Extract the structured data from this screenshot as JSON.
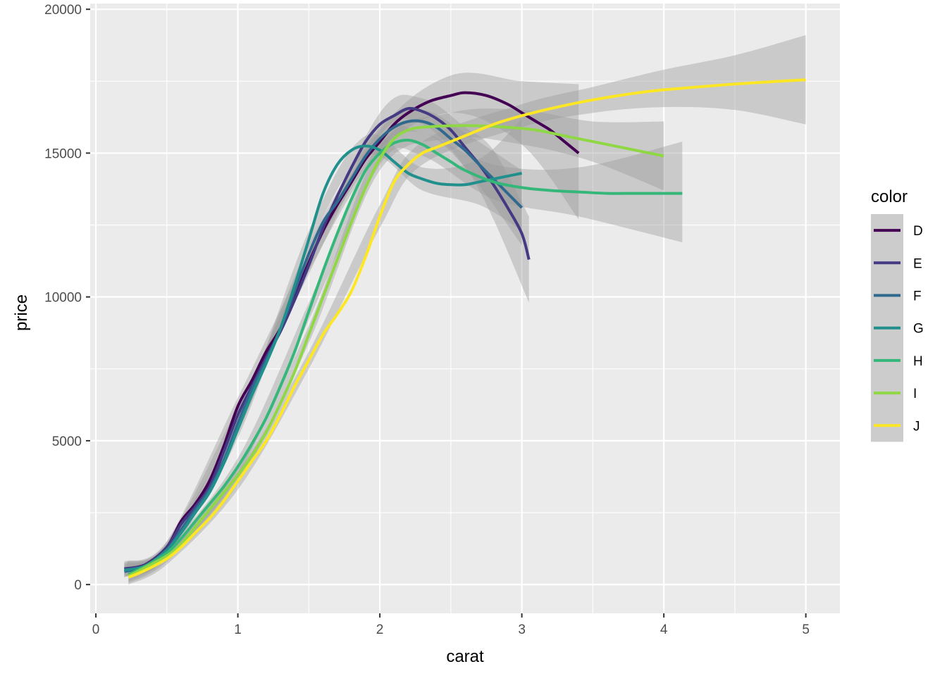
{
  "chart_data": {
    "type": "line",
    "xlabel": "carat",
    "ylabel": "price",
    "xlim": [
      -0.04,
      5.24
    ],
    "ylim": [
      -1000,
      20200
    ],
    "x_ticks": [
      0,
      1,
      2,
      3,
      4,
      5
    ],
    "x_tick_labels": [
      "0",
      "1",
      "2",
      "3",
      "4",
      "5"
    ],
    "y_ticks": [
      0,
      5000,
      10000,
      15000,
      20000
    ],
    "y_tick_labels": [
      "0",
      "5000",
      "10000",
      "15000",
      "20000"
    ],
    "grid": true,
    "legend": {
      "title": "color",
      "position": "right"
    },
    "series": [
      {
        "name": "D",
        "color": "#440154",
        "points": [
          [
            0.22,
            550
          ],
          [
            0.35,
            700
          ],
          [
            0.5,
            1300
          ],
          [
            0.6,
            2200
          ],
          [
            0.7,
            2800
          ],
          [
            0.8,
            3600
          ],
          [
            0.9,
            4800
          ],
          [
            1.0,
            6200
          ],
          [
            1.1,
            7100
          ],
          [
            1.2,
            8100
          ],
          [
            1.3,
            8900
          ],
          [
            1.4,
            10000
          ],
          [
            1.5,
            11200
          ],
          [
            1.6,
            12300
          ],
          [
            1.7,
            13200
          ],
          [
            1.8,
            14000
          ],
          [
            1.9,
            14800
          ],
          [
            2.0,
            15400
          ],
          [
            2.1,
            16000
          ],
          [
            2.2,
            16400
          ],
          [
            2.35,
            16800
          ],
          [
            2.5,
            17000
          ],
          [
            2.6,
            17100
          ],
          [
            2.75,
            17000
          ],
          [
            2.9,
            16700
          ],
          [
            3.0,
            16400
          ],
          [
            3.1,
            16100
          ],
          [
            3.2,
            15800
          ],
          [
            3.3,
            15400
          ],
          [
            3.4,
            15000
          ]
        ],
        "band": [
          [
            0.22,
            300,
            800
          ],
          [
            0.5,
            1100,
            1500
          ],
          [
            1.0,
            5900,
            6500
          ],
          [
            1.5,
            10900,
            11500
          ],
          [
            2.0,
            15000,
            15800
          ],
          [
            2.5,
            16400,
            17700
          ],
          [
            3.0,
            15300,
            17500
          ],
          [
            3.4,
            12700,
            17400
          ]
        ]
      },
      {
        "name": "E",
        "color": "#443a83",
        "points": [
          [
            0.2,
            550
          ],
          [
            0.35,
            700
          ],
          [
            0.5,
            1300
          ],
          [
            0.6,
            2100
          ],
          [
            0.7,
            2700
          ],
          [
            0.8,
            3400
          ],
          [
            0.9,
            4600
          ],
          [
            1.0,
            5900
          ],
          [
            1.1,
            6900
          ],
          [
            1.2,
            7900
          ],
          [
            1.3,
            8800
          ],
          [
            1.4,
            9900
          ],
          [
            1.5,
            11100
          ],
          [
            1.6,
            12400
          ],
          [
            1.7,
            13500
          ],
          [
            1.8,
            14500
          ],
          [
            1.9,
            15400
          ],
          [
            2.0,
            16000
          ],
          [
            2.1,
            16300
          ],
          [
            2.2,
            16550
          ],
          [
            2.3,
            16450
          ],
          [
            2.4,
            16200
          ],
          [
            2.5,
            15800
          ],
          [
            2.6,
            15200
          ],
          [
            2.7,
            14600
          ],
          [
            2.8,
            13900
          ],
          [
            2.9,
            13100
          ],
          [
            3.0,
            12200
          ],
          [
            3.05,
            11300
          ]
        ],
        "band": [
          [
            0.2,
            300,
            800
          ],
          [
            0.5,
            1100,
            1500
          ],
          [
            1.0,
            5600,
            6200
          ],
          [
            1.5,
            10800,
            11400
          ],
          [
            2.0,
            15600,
            16400
          ],
          [
            2.3,
            16000,
            16900
          ],
          [
            2.6,
            14500,
            15900
          ],
          [
            2.8,
            12700,
            15100
          ],
          [
            3.05,
            9800,
            12800
          ]
        ]
      },
      {
        "name": "F",
        "color": "#31688e",
        "points": [
          [
            0.2,
            450
          ],
          [
            0.35,
            650
          ],
          [
            0.5,
            1200
          ],
          [
            0.6,
            1900
          ],
          [
            0.7,
            2600
          ],
          [
            0.8,
            3300
          ],
          [
            0.9,
            4300
          ],
          [
            1.0,
            5600
          ],
          [
            1.1,
            6800
          ],
          [
            1.2,
            7800
          ],
          [
            1.3,
            8900
          ],
          [
            1.4,
            10200
          ],
          [
            1.5,
            11500
          ],
          [
            1.6,
            12600
          ],
          [
            1.7,
            13300
          ],
          [
            1.8,
            14100
          ],
          [
            1.9,
            14900
          ],
          [
            2.0,
            15500
          ],
          [
            2.1,
            15900
          ],
          [
            2.2,
            16100
          ],
          [
            2.3,
            16100
          ],
          [
            2.4,
            15900
          ],
          [
            2.5,
            15500
          ],
          [
            2.6,
            15100
          ],
          [
            2.7,
            14600
          ],
          [
            2.8,
            14100
          ],
          [
            2.9,
            13600
          ],
          [
            3.0,
            13100
          ]
        ],
        "band": [
          [
            0.2,
            250,
            700
          ],
          [
            0.5,
            1000,
            1400
          ],
          [
            1.0,
            5300,
            5900
          ],
          [
            1.5,
            11200,
            11800
          ],
          [
            2.0,
            15100,
            15900
          ],
          [
            2.3,
            15700,
            16500
          ],
          [
            2.6,
            14500,
            15700
          ],
          [
            3.0,
            11800,
            14400
          ]
        ]
      },
      {
        "name": "G",
        "color": "#21908d",
        "points": [
          [
            0.2,
            500
          ],
          [
            0.35,
            650
          ],
          [
            0.5,
            1200
          ],
          [
            0.6,
            1800
          ],
          [
            0.7,
            2500
          ],
          [
            0.8,
            3200
          ],
          [
            0.9,
            4200
          ],
          [
            1.0,
            5400
          ],
          [
            1.1,
            6600
          ],
          [
            1.2,
            7700
          ],
          [
            1.3,
            8900
          ],
          [
            1.4,
            10400
          ],
          [
            1.5,
            12000
          ],
          [
            1.6,
            13600
          ],
          [
            1.7,
            14600
          ],
          [
            1.8,
            15100
          ],
          [
            1.9,
            15250
          ],
          [
            2.0,
            15100
          ],
          [
            2.1,
            14700
          ],
          [
            2.2,
            14300
          ],
          [
            2.3,
            14100
          ],
          [
            2.4,
            13950
          ],
          [
            2.5,
            13900
          ],
          [
            2.6,
            13900
          ],
          [
            2.7,
            14000
          ],
          [
            2.8,
            14100
          ],
          [
            2.9,
            14200
          ],
          [
            3.0,
            14300
          ]
        ],
        "band": [
          [
            0.2,
            250,
            750
          ],
          [
            0.5,
            1000,
            1400
          ],
          [
            1.0,
            5100,
            5700
          ],
          [
            1.5,
            11700,
            12300
          ],
          [
            1.9,
            14900,
            15600
          ],
          [
            2.3,
            13700,
            14500
          ],
          [
            2.7,
            13200,
            14800
          ],
          [
            3.0,
            12300,
            16200
          ]
        ]
      },
      {
        "name": "H",
        "color": "#35b779",
        "points": [
          [
            0.23,
            350
          ],
          [
            0.35,
            650
          ],
          [
            0.5,
            1100
          ],
          [
            0.6,
            1600
          ],
          [
            0.7,
            2200
          ],
          [
            0.8,
            2800
          ],
          [
            0.9,
            3400
          ],
          [
            1.0,
            4100
          ],
          [
            1.1,
            4900
          ],
          [
            1.2,
            5800
          ],
          [
            1.3,
            6900
          ],
          [
            1.4,
            8100
          ],
          [
            1.5,
            9500
          ],
          [
            1.6,
            10900
          ],
          [
            1.7,
            12200
          ],
          [
            1.8,
            13400
          ],
          [
            1.9,
            14400
          ],
          [
            2.0,
            15000
          ],
          [
            2.1,
            15350
          ],
          [
            2.2,
            15450
          ],
          [
            2.3,
            15300
          ],
          [
            2.4,
            15000
          ],
          [
            2.5,
            14700
          ],
          [
            2.6,
            14400
          ],
          [
            2.8,
            14000
          ],
          [
            3.0,
            13800
          ],
          [
            3.2,
            13700
          ],
          [
            3.4,
            13650
          ],
          [
            3.6,
            13600
          ],
          [
            3.8,
            13600
          ],
          [
            4.0,
            13600
          ],
          [
            4.13,
            13600
          ]
        ],
        "band": [
          [
            0.23,
            100,
            600
          ],
          [
            0.5,
            900,
            1300
          ],
          [
            1.0,
            3800,
            4400
          ],
          [
            1.5,
            9200,
            9800
          ],
          [
            2.0,
            14600,
            15400
          ],
          [
            2.3,
            14900,
            15700
          ],
          [
            2.8,
            13400,
            14600
          ],
          [
            3.4,
            12800,
            14500
          ],
          [
            4.13,
            11900,
            15400
          ]
        ]
      },
      {
        "name": "I",
        "color": "#8fd744",
        "points": [
          [
            0.23,
            300
          ],
          [
            0.35,
            600
          ],
          [
            0.5,
            1000
          ],
          [
            0.6,
            1400
          ],
          [
            0.7,
            2000
          ],
          [
            0.8,
            2600
          ],
          [
            0.9,
            3200
          ],
          [
            1.0,
            3800
          ],
          [
            1.1,
            4500
          ],
          [
            1.2,
            5300
          ],
          [
            1.3,
            6300
          ],
          [
            1.4,
            7400
          ],
          [
            1.5,
            8700
          ],
          [
            1.6,
            10000
          ],
          [
            1.7,
            11300
          ],
          [
            1.8,
            12600
          ],
          [
            1.9,
            13800
          ],
          [
            2.0,
            14800
          ],
          [
            2.1,
            15500
          ],
          [
            2.2,
            15800
          ],
          [
            2.3,
            15900
          ],
          [
            2.5,
            15950
          ],
          [
            2.7,
            15950
          ],
          [
            2.9,
            15900
          ],
          [
            3.1,
            15800
          ],
          [
            3.3,
            15600
          ],
          [
            3.5,
            15400
          ],
          [
            3.7,
            15200
          ],
          [
            3.9,
            15000
          ],
          [
            4.0,
            14900
          ]
        ],
        "band": [
          [
            0.23,
            50,
            550
          ],
          [
            0.5,
            800,
            1200
          ],
          [
            1.0,
            3500,
            4100
          ],
          [
            1.5,
            8400,
            9000
          ],
          [
            2.0,
            14400,
            15200
          ],
          [
            2.5,
            15500,
            16400
          ],
          [
            3.0,
            15300,
            16500
          ],
          [
            3.5,
            14700,
            16100
          ],
          [
            4.0,
            13700,
            16100
          ]
        ]
      },
      {
        "name": "J",
        "color": "#fde725",
        "points": [
          [
            0.23,
            250
          ],
          [
            0.35,
            500
          ],
          [
            0.5,
            900
          ],
          [
            0.6,
            1300
          ],
          [
            0.7,
            1800
          ],
          [
            0.8,
            2300
          ],
          [
            0.9,
            2900
          ],
          [
            1.0,
            3600
          ],
          [
            1.1,
            4300
          ],
          [
            1.2,
            5000
          ],
          [
            1.3,
            5900
          ],
          [
            1.4,
            6900
          ],
          [
            1.5,
            7800
          ],
          [
            1.6,
            8700
          ],
          [
            1.7,
            9400
          ],
          [
            1.8,
            10200
          ],
          [
            1.9,
            11400
          ],
          [
            2.0,
            12800
          ],
          [
            2.1,
            14000
          ],
          [
            2.2,
            14600
          ],
          [
            2.3,
            15000
          ],
          [
            2.4,
            15200
          ],
          [
            2.6,
            15600
          ],
          [
            2.8,
            16000
          ],
          [
            3.0,
            16300
          ],
          [
            3.25,
            16600
          ],
          [
            3.5,
            16850
          ],
          [
            3.75,
            17050
          ],
          [
            4.0,
            17200
          ],
          [
            4.5,
            17400
          ],
          [
            5.0,
            17550
          ]
        ],
        "band": [
          [
            0.23,
            0,
            500
          ],
          [
            0.5,
            700,
            1100
          ],
          [
            1.0,
            3300,
            3900
          ],
          [
            1.5,
            7500,
            8100
          ],
          [
            2.0,
            12400,
            13200
          ],
          [
            2.3,
            14600,
            15400
          ],
          [
            3.0,
            15900,
            16700
          ],
          [
            3.5,
            16400,
            17300
          ],
          [
            4.0,
            16600,
            17900
          ],
          [
            4.5,
            16500,
            18400
          ],
          [
            5.0,
            16000,
            19100
          ]
        ]
      }
    ]
  }
}
